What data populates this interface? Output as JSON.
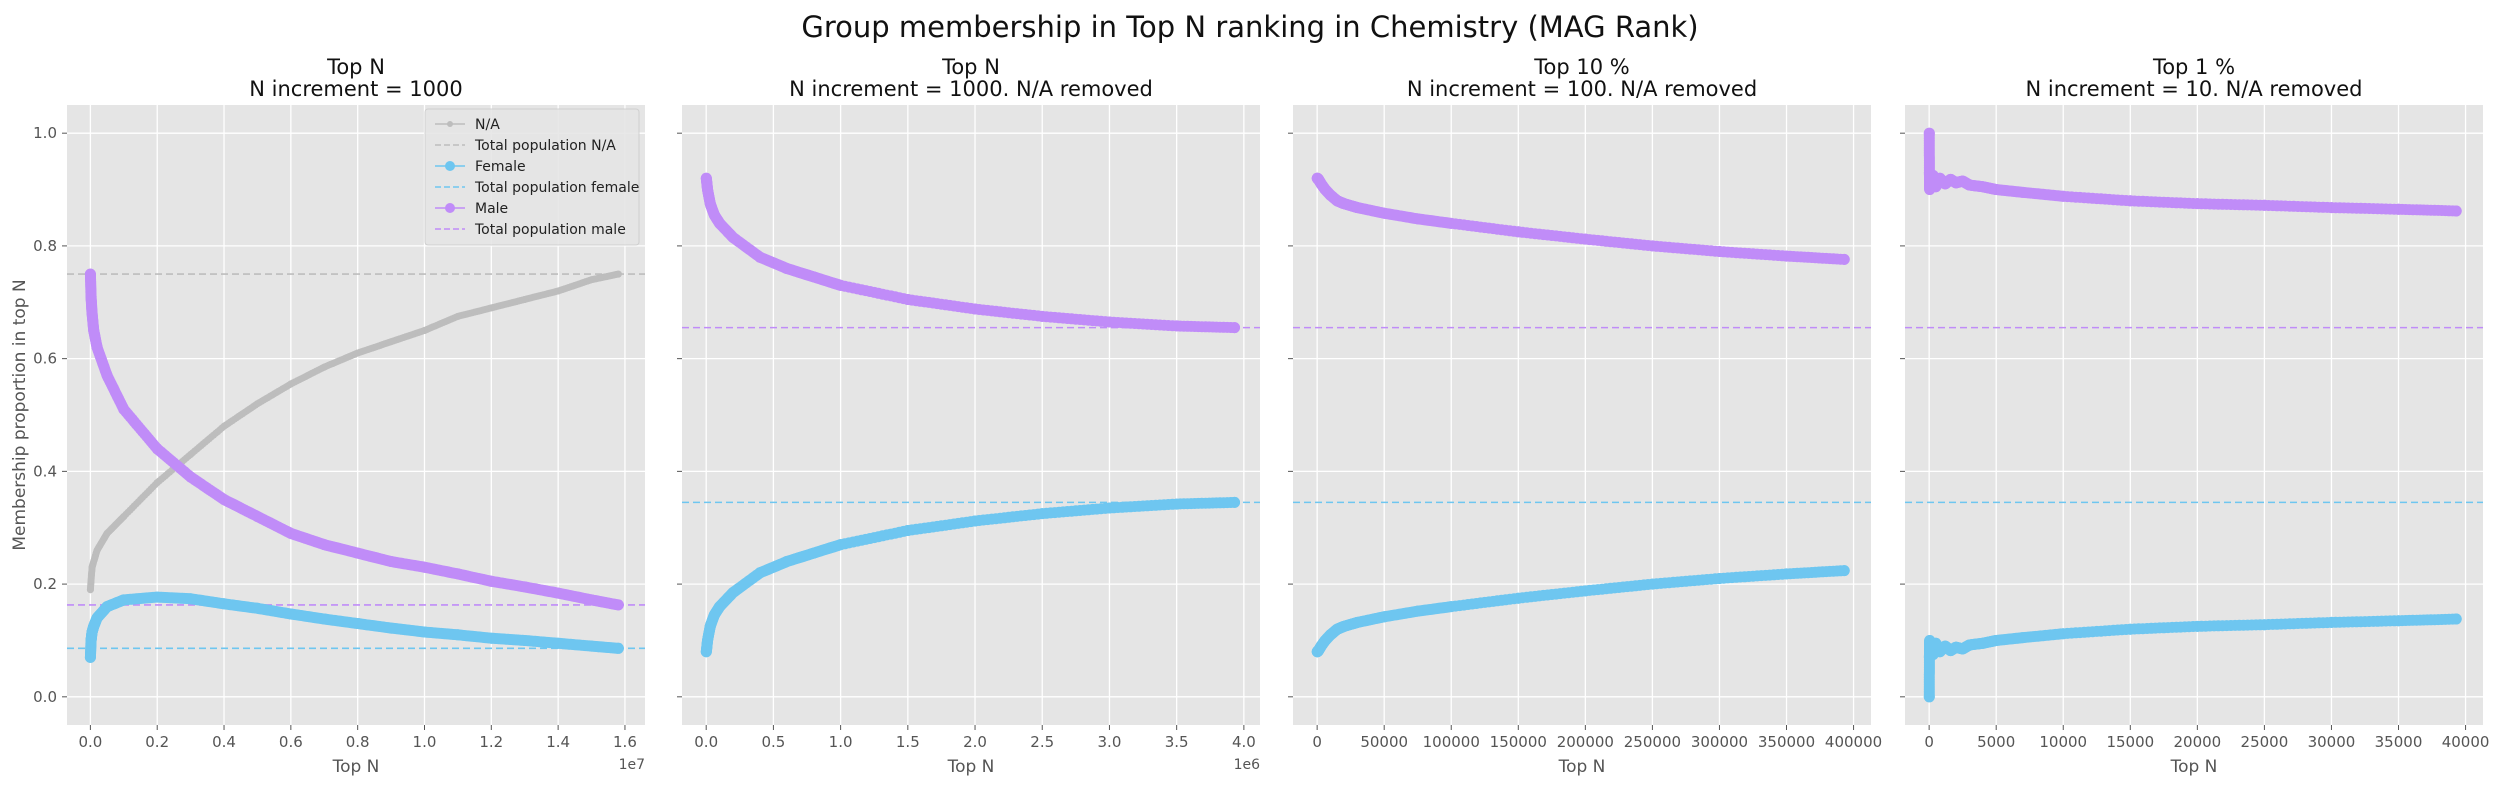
{
  "figure": {
    "title": "Group membership in Top N ranking in Chemistry (MAG Rank)",
    "colors": {
      "background": "#E5E5E5",
      "grid": "#FFFFFF",
      "na": "#BDBDBD",
      "female": "#6EC6F0",
      "male": "#C08CF8"
    }
  },
  "chart_data": [
    {
      "type": "line",
      "title_line1": "Top N",
      "title_line2": "N increment = 1000",
      "xlabel": "Top N",
      "ylabel": "Membership proportion in top N",
      "x_offset_label": "1e7",
      "xlim": [
        -700000,
        16600000
      ],
      "ylim": [
        -0.05,
        1.05
      ],
      "xticks": [
        0,
        2000000,
        4000000,
        6000000,
        8000000,
        10000000,
        12000000,
        14000000,
        16000000
      ],
      "xtick_labels": [
        "0.0",
        "0.2",
        "0.4",
        "0.6",
        "0.8",
        "1.0",
        "1.2",
        "1.4",
        "1.6"
      ],
      "yticks": [
        0.0,
        0.2,
        0.4,
        0.6,
        0.8,
        1.0
      ],
      "ytick_labels": [
        "0.0",
        "0.2",
        "0.4",
        "0.6",
        "0.8",
        "1.0"
      ],
      "legend_position": "top-right",
      "legend": [
        {
          "label": "N/A",
          "kind": "line-marker",
          "color_key": "na"
        },
        {
          "label": "Total population N/A",
          "kind": "dashed",
          "color_key": "na"
        },
        {
          "label": "Female",
          "kind": "line-marker",
          "color_key": "female"
        },
        {
          "label": "Total population female",
          "kind": "dashed",
          "color_key": "female"
        },
        {
          "label": "Male",
          "kind": "line-marker",
          "color_key": "male"
        },
        {
          "label": "Total population male",
          "kind": "dashed",
          "color_key": "male"
        }
      ],
      "series": [
        {
          "color_key": "na",
          "x": [
            1000,
            50000,
            200000,
            500000,
            1000000,
            2000000,
            3000000,
            4000000,
            5000000,
            6000000,
            7000000,
            8000000,
            9000000,
            10000000,
            11000000,
            12000000,
            13000000,
            14000000,
            15000000,
            15800000
          ],
          "values": [
            0.19,
            0.23,
            0.26,
            0.29,
            0.32,
            0.38,
            0.43,
            0.48,
            0.52,
            0.555,
            0.585,
            0.61,
            0.63,
            0.65,
            0.675,
            0.69,
            0.705,
            0.72,
            0.74,
            0.75
          ]
        },
        {
          "color_key": "female",
          "x": [
            1000,
            20000,
            50000,
            100000,
            200000,
            500000,
            1000000,
            2000000,
            3000000,
            4000000,
            5000000,
            6000000,
            7000000,
            8000000,
            9000000,
            10000000,
            11000000,
            12000000,
            13000000,
            14000000,
            15000000,
            15800000
          ],
          "values": [
            0.07,
            0.1,
            0.115,
            0.125,
            0.14,
            0.16,
            0.172,
            0.177,
            0.174,
            0.165,
            0.157,
            0.147,
            0.138,
            0.13,
            0.122,
            0.115,
            0.11,
            0.104,
            0.1,
            0.095,
            0.09,
            0.086
          ]
        },
        {
          "color_key": "male",
          "x": [
            1000,
            20000,
            50000,
            100000,
            200000,
            500000,
            1000000,
            2000000,
            3000000,
            4000000,
            5000000,
            6000000,
            7000000,
            8000000,
            9000000,
            10000000,
            11000000,
            12000000,
            13000000,
            14000000,
            15000000,
            15800000
          ],
          "values": [
            0.75,
            0.71,
            0.68,
            0.65,
            0.62,
            0.57,
            0.51,
            0.44,
            0.39,
            0.35,
            0.32,
            0.29,
            0.27,
            0.255,
            0.24,
            0.23,
            0.218,
            0.205,
            0.195,
            0.184,
            0.172,
            0.163
          ]
        }
      ],
      "hlines": [
        {
          "color_key": "na",
          "y": 0.75
        },
        {
          "color_key": "male",
          "y": 0.163
        },
        {
          "color_key": "female",
          "y": 0.086
        }
      ]
    },
    {
      "type": "line",
      "title_line1": "Top N",
      "title_line2": "N increment = 1000. N/A removed",
      "xlabel": "Top N",
      "ylabel": "",
      "x_offset_label": "1e6",
      "xlim": [
        -180000,
        4120000
      ],
      "ylim": [
        -0.05,
        1.05
      ],
      "xticks": [
        0,
        500000,
        1000000,
        1500000,
        2000000,
        2500000,
        3000000,
        3500000,
        4000000
      ],
      "xtick_labels": [
        "0.0",
        "0.5",
        "1.0",
        "1.5",
        "2.0",
        "2.5",
        "3.0",
        "3.5",
        "4.0"
      ],
      "yticks": [
        0.0,
        0.2,
        0.4,
        0.6,
        0.8,
        1.0
      ],
      "ytick_labels": [],
      "series": [
        {
          "color_key": "male",
          "x": [
            1000,
            10000,
            30000,
            60000,
            100000,
            200000,
            400000,
            600000,
            800000,
            1000000,
            1500000,
            2000000,
            2500000,
            3000000,
            3500000,
            3930000
          ],
          "values": [
            0.92,
            0.9,
            0.875,
            0.855,
            0.84,
            0.815,
            0.78,
            0.76,
            0.745,
            0.73,
            0.705,
            0.688,
            0.675,
            0.665,
            0.658,
            0.655
          ]
        },
        {
          "color_key": "female",
          "x": [
            1000,
            10000,
            30000,
            60000,
            100000,
            200000,
            400000,
            600000,
            800000,
            1000000,
            1500000,
            2000000,
            2500000,
            3000000,
            3500000,
            3930000
          ],
          "values": [
            0.08,
            0.1,
            0.125,
            0.145,
            0.16,
            0.185,
            0.22,
            0.24,
            0.255,
            0.27,
            0.295,
            0.312,
            0.325,
            0.335,
            0.342,
            0.345
          ]
        }
      ],
      "hlines": [
        {
          "color_key": "male",
          "y": 0.655
        },
        {
          "color_key": "female",
          "y": 0.345
        }
      ]
    },
    {
      "type": "line",
      "title_line1": "Top 10 %",
      "title_line2": "N increment = 100. N/A removed",
      "xlabel": "Top N",
      "ylabel": "",
      "xlim": [
        -18000,
        413000
      ],
      "ylim": [
        -0.05,
        1.05
      ],
      "xticks": [
        0,
        50000,
        100000,
        150000,
        200000,
        250000,
        300000,
        350000,
        400000
      ],
      "xtick_labels": [
        "0",
        "50000",
        "100000",
        "150000",
        "200000",
        "250000",
        "300000",
        "350000",
        "400000"
      ],
      "yticks": [
        0.0,
        0.2,
        0.4,
        0.6,
        0.8,
        1.0
      ],
      "ytick_labels": [],
      "series": [
        {
          "color_key": "male",
          "x": [
            100,
            1000,
            3000,
            6000,
            10000,
            15000,
            20000,
            30000,
            50000,
            75000,
            100000,
            150000,
            200000,
            250000,
            300000,
            350000,
            393000
          ],
          "values": [
            0.92,
            0.918,
            0.91,
            0.9,
            0.89,
            0.88,
            0.875,
            0.868,
            0.858,
            0.848,
            0.84,
            0.825,
            0.812,
            0.8,
            0.79,
            0.782,
            0.776
          ]
        },
        {
          "color_key": "female",
          "x": [
            100,
            1000,
            3000,
            6000,
            10000,
            15000,
            20000,
            30000,
            50000,
            75000,
            100000,
            150000,
            200000,
            250000,
            300000,
            350000,
            393000
          ],
          "values": [
            0.08,
            0.082,
            0.09,
            0.1,
            0.11,
            0.12,
            0.125,
            0.132,
            0.142,
            0.152,
            0.16,
            0.175,
            0.188,
            0.2,
            0.21,
            0.218,
            0.224
          ]
        }
      ],
      "hlines": [
        {
          "color_key": "male",
          "y": 0.655
        },
        {
          "color_key": "female",
          "y": 0.345
        }
      ]
    },
    {
      "type": "line",
      "title_line1": "Top 1 %",
      "title_line2": "N increment = 10. N/A removed",
      "xlabel": "Top N",
      "ylabel": "",
      "xlim": [
        -1800,
        41300
      ],
      "ylim": [
        -0.05,
        1.05
      ],
      "xticks": [
        0,
        5000,
        10000,
        15000,
        20000,
        25000,
        30000,
        35000,
        40000
      ],
      "xtick_labels": [
        "0",
        "5000",
        "10000",
        "15000",
        "20000",
        "25000",
        "30000",
        "35000",
        "40000"
      ],
      "yticks": [
        0.0,
        0.2,
        0.4,
        0.6,
        0.8,
        1.0
      ],
      "ytick_labels": [],
      "series": [
        {
          "color_key": "male",
          "x": [
            10,
            20,
            40,
            80,
            150,
            300,
            500,
            800,
            1200,
            1600,
            2000,
            2500,
            3000,
            4000,
            5000,
            7000,
            10000,
            15000,
            20000,
            25000,
            30000,
            35000,
            39300
          ],
          "values": [
            1.0,
            0.93,
            0.9,
            0.92,
            0.91,
            0.925,
            0.905,
            0.92,
            0.91,
            0.918,
            0.912,
            0.915,
            0.908,
            0.905,
            0.9,
            0.895,
            0.888,
            0.88,
            0.875,
            0.872,
            0.868,
            0.865,
            0.862
          ]
        },
        {
          "color_key": "female",
          "x": [
            10,
            20,
            40,
            80,
            150,
            300,
            500,
            800,
            1200,
            1600,
            2000,
            2500,
            3000,
            4000,
            5000,
            7000,
            10000,
            15000,
            20000,
            25000,
            30000,
            35000,
            39300
          ],
          "values": [
            0.0,
            0.07,
            0.1,
            0.08,
            0.09,
            0.075,
            0.095,
            0.08,
            0.09,
            0.082,
            0.088,
            0.085,
            0.092,
            0.095,
            0.1,
            0.105,
            0.112,
            0.12,
            0.125,
            0.128,
            0.132,
            0.135,
            0.138
          ]
        }
      ],
      "hlines": [
        {
          "color_key": "male",
          "y": 0.655
        },
        {
          "color_key": "female",
          "y": 0.345
        }
      ]
    }
  ]
}
